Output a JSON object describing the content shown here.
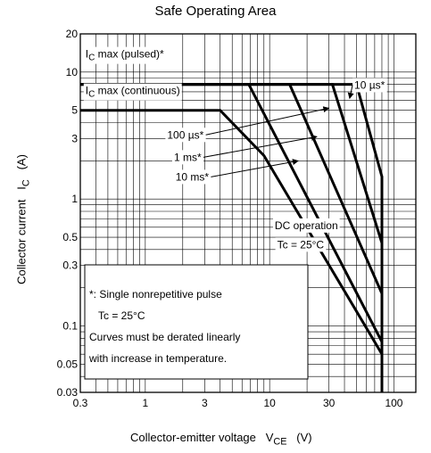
{
  "chart_data": {
    "type": "line",
    "title": "Safe Operating Area",
    "xlabel": "Collector-emitter voltage",
    "xlabel_symbol": "V",
    "xlabel_sub": "CE",
    "xlabel_unit": "(V)",
    "ylabel": "Collector current",
    "ylabel_symbol": "I",
    "ylabel_sub": "C",
    "ylabel_unit": "(A)",
    "x_scale": "log",
    "y_scale": "log",
    "xlim": [
      0.3,
      150
    ],
    "ylim": [
      0.03,
      20
    ],
    "grid": true,
    "x_ticks": [
      {
        "value": 0.3,
        "label": "0.3"
      },
      {
        "value": 1,
        "label": "1"
      },
      {
        "value": 3,
        "label": "3"
      },
      {
        "value": 10,
        "label": "10"
      },
      {
        "value": 30,
        "label": "30"
      },
      {
        "value": 100,
        "label": "100"
      }
    ],
    "y_ticks": [
      {
        "value": 0.03,
        "label": "0.03"
      },
      {
        "value": 0.05,
        "label": "0.05"
      },
      {
        "value": 0.1,
        "label": "0.1"
      },
      {
        "value": 0.3,
        "label": "0.3"
      },
      {
        "value": 0.5,
        "label": "0.5"
      },
      {
        "value": 1,
        "label": "1"
      },
      {
        "value": 3,
        "label": "3"
      },
      {
        "value": 5,
        "label": "5"
      },
      {
        "value": 10,
        "label": "10"
      },
      {
        "value": 20,
        "label": "20"
      }
    ],
    "series": [
      {
        "name": "10 µs*",
        "x": [
          0.3,
          50,
          80,
          80
        ],
        "y": [
          8,
          8,
          1.5,
          0.03
        ]
      },
      {
        "name": "100 µs*",
        "x": [
          0.3,
          32,
          80,
          80
        ],
        "y": [
          8,
          8,
          0.45,
          0.03
        ]
      },
      {
        "name": "1 ms*",
        "x": [
          0.3,
          14.5,
          80,
          80
        ],
        "y": [
          8,
          8,
          0.18,
          0.03
        ]
      },
      {
        "name": "10 ms*",
        "x": [
          0.3,
          6.8,
          80,
          80
        ],
        "y": [
          8,
          8,
          0.075,
          0.03
        ]
      },
      {
        "name": "DC operation",
        "x": [
          0.3,
          4,
          9,
          80,
          80
        ],
        "y": [
          5,
          5,
          2.2,
          0.06,
          0.03
        ]
      }
    ],
    "annotations": [
      {
        "text": "max (pulsed)*",
        "symbol": "I",
        "sub": "C",
        "x": 0.33,
        "y": 13
      },
      {
        "text": "max (continuous)",
        "symbol": "I",
        "sub": "C",
        "x": 0.33,
        "y": 6.7
      },
      {
        "text": "10 µs*",
        "x": 48,
        "y": 7.4
      },
      {
        "text": "100 µs*",
        "x": 1.5,
        "y": 3
      },
      {
        "text": "1 ms*",
        "x": 1.7,
        "y": 2
      },
      {
        "text": "10 ms*",
        "x": 1.75,
        "y": 1.4
      },
      {
        "text": "DC operation",
        "x": 11,
        "y": 0.58
      },
      {
        "text": "Tc = 25°C",
        "x": 11.5,
        "y": 0.41
      }
    ],
    "note": {
      "line1": "*: Single nonrepetitive pulse",
      "line2": "Tc = 25°C",
      "line3": "Curves must be derated linearly",
      "line4": "with increase in temperature."
    }
  }
}
